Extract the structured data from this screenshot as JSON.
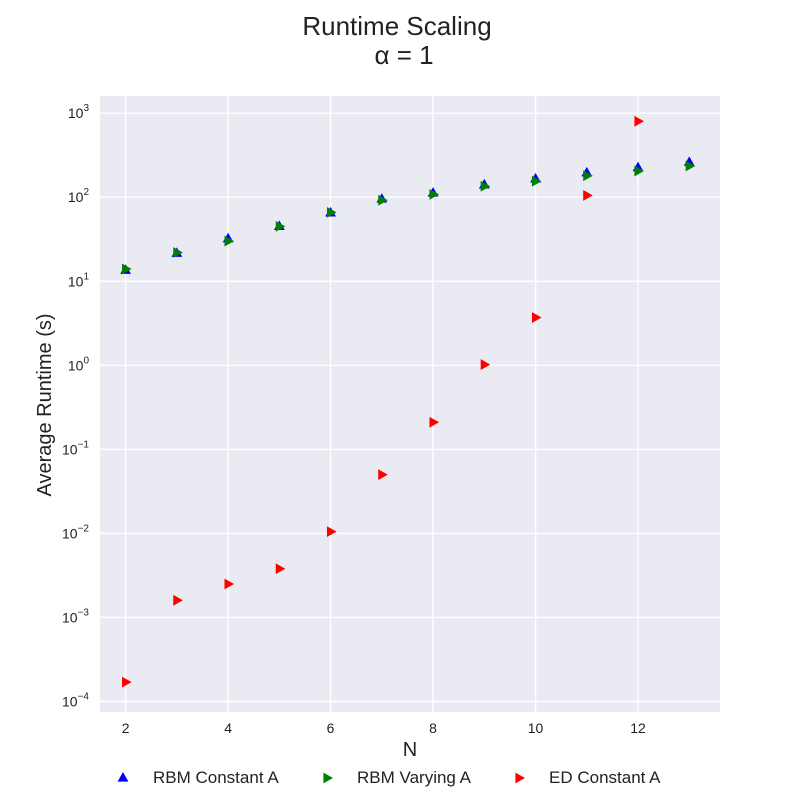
{
  "chart_data": {
    "type": "scatter",
    "title": "Runtime Scaling",
    "subtitle": "α = 1",
    "xlabel": "N",
    "ylabel": "Average Runtime (s)",
    "xlim": [
      1.5,
      13.6
    ],
    "ylim": [
      7.5e-05,
      1600
    ],
    "yscale": "log",
    "grid": true,
    "legend_position": "bottom",
    "xticks": [
      2,
      4,
      6,
      8,
      10,
      12
    ],
    "yticks": [
      {
        "exp": -4,
        "base": "10",
        "sup": "−4"
      },
      {
        "exp": -3,
        "base": "10",
        "sup": "−3"
      },
      {
        "exp": -2,
        "base": "10",
        "sup": "−2"
      },
      {
        "exp": -1,
        "base": "10",
        "sup": "−1"
      },
      {
        "exp": 0,
        "base": "10",
        "sup": "0"
      },
      {
        "exp": 1,
        "base": "10",
        "sup": "1"
      },
      {
        "exp": 2,
        "base": "10",
        "sup": "2"
      },
      {
        "exp": 3,
        "base": "10",
        "sup": "3"
      }
    ],
    "series": [
      {
        "name": "RBM Constant A",
        "color": "#0000ff",
        "marker": "triangle-up",
        "x": [
          2,
          3,
          4,
          5,
          6,
          7,
          8,
          9,
          10,
          11,
          12,
          13
        ],
        "y": [
          13.5,
          21.5,
          32,
          45,
          65,
          95,
          112,
          140,
          165,
          195,
          225,
          260
        ]
      },
      {
        "name": "RBM Varying A",
        "color": "#008000",
        "marker": "triangle-right",
        "x": [
          2,
          3,
          4,
          5,
          6,
          7,
          8,
          9,
          10,
          11,
          12,
          13
        ],
        "y": [
          14,
          22,
          30,
          45,
          66,
          92,
          108,
          135,
          155,
          180,
          205,
          235
        ]
      },
      {
        "name": "ED Constant A",
        "color": "#ff0000",
        "marker": "triangle-right",
        "x": [
          2,
          3,
          4,
          5,
          6,
          7,
          8,
          9,
          10,
          11,
          12
        ],
        "y": [
          0.00017,
          0.0016,
          0.0025,
          0.0038,
          0.0105,
          0.05,
          0.21,
          1.02,
          3.7,
          105,
          800
        ]
      }
    ]
  }
}
